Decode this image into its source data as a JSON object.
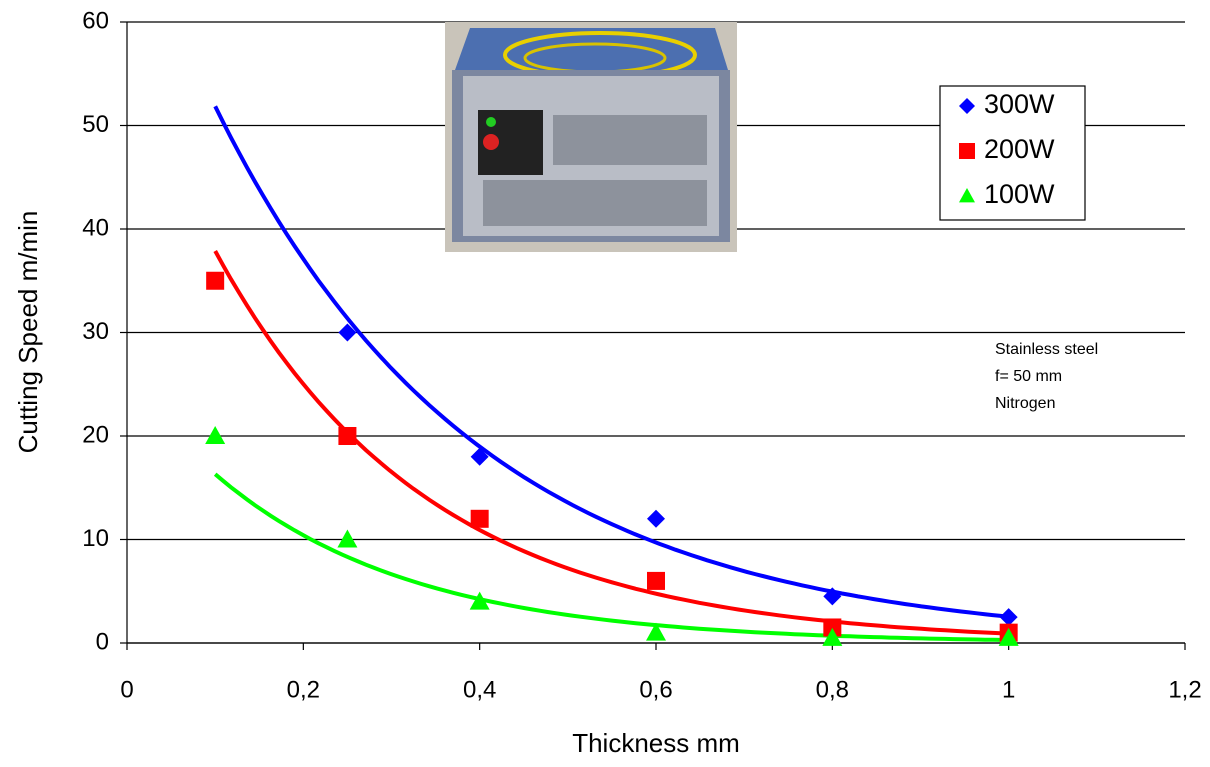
{
  "chart_data": {
    "type": "scatter",
    "xlabel": "Thickness mm",
    "ylabel": "Cutting Speed m/min",
    "x": [
      0.1,
      0.25,
      0.4,
      0.6,
      0.8,
      1
    ],
    "series": [
      {
        "name": "300W",
        "color": "#0000ff",
        "marker": "diamond",
        "values": [
          null,
          30,
          18,
          12,
          4.5,
          2.5
        ]
      },
      {
        "name": "200W",
        "color": "#ff0000",
        "marker": "square",
        "values": [
          35,
          20,
          12,
          6,
          1.5,
          1
        ]
      },
      {
        "name": "100W",
        "color": "#00ff00",
        "marker": "triangle",
        "values": [
          20,
          10,
          4,
          1,
          0.5,
          0.5
        ]
      }
    ],
    "trendline": "exponential",
    "xlim": [
      0,
      1.2
    ],
    "xticks": [
      0,
      {
        "value": 0.2,
        "label": "0,2"
      },
      {
        "value": 0.4,
        "label": "0,4"
      },
      {
        "value": 0.6,
        "label": "0,6"
      },
      {
        "value": 0.8,
        "label": "0,8"
      },
      1,
      {
        "value": 1.2,
        "label": "1,2"
      }
    ],
    "ylim": [
      0,
      60
    ],
    "yticks": [
      0,
      10,
      20,
      30,
      40,
      50,
      60
    ],
    "grid": true,
    "legend": "upper right",
    "annotation": [
      "Stainless steel",
      "f= 50 mm",
      "Nitrogen"
    ]
  }
}
